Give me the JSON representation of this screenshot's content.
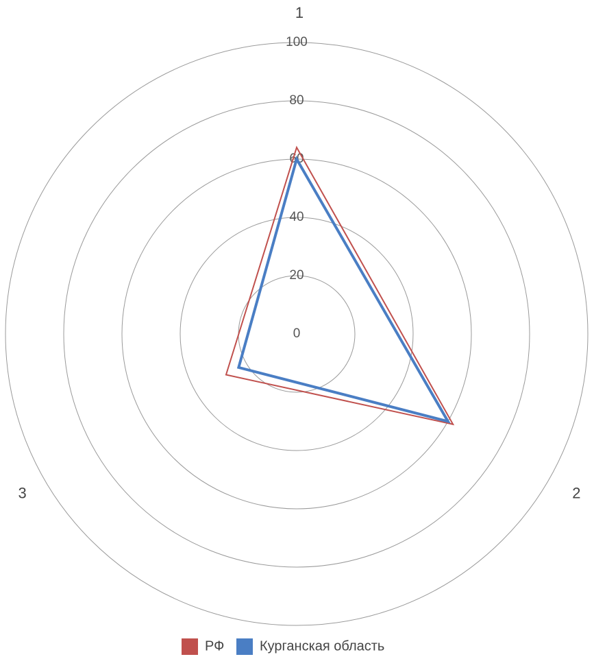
{
  "chart_data": {
    "type": "radar",
    "categories": [
      "1",
      "2",
      "3"
    ],
    "series": [
      {
        "name": "РФ",
        "color": "#c0504d",
        "values": [
          64,
          62,
          28
        ]
      },
      {
        "name": "Курганская область",
        "color": "#4a7ec4",
        "values": [
          60,
          60,
          23
        ]
      }
    ],
    "rlim": [
      0,
      100
    ],
    "rticks": [
      0,
      20,
      40,
      60,
      80,
      100
    ],
    "grid": true,
    "legend": "bottom"
  }
}
